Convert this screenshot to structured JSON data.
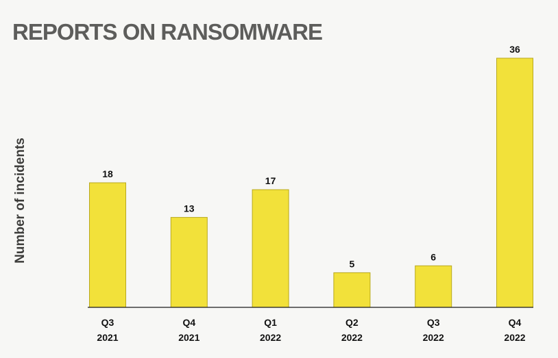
{
  "chart_data": {
    "type": "bar",
    "title": "REPORTS ON RANSOMWARE",
    "ylabel": "Number of incidents",
    "xlabel": "",
    "categories": [
      {
        "quarter": "Q3",
        "year": "2021"
      },
      {
        "quarter": "Q4",
        "year": "2021"
      },
      {
        "quarter": "Q1",
        "year": "2022"
      },
      {
        "quarter": "Q2",
        "year": "2022"
      },
      {
        "quarter": "Q3",
        "year": "2022"
      },
      {
        "quarter": "Q4",
        "year": "2022"
      }
    ],
    "values": [
      18,
      13,
      17,
      5,
      6,
      36
    ],
    "ylim": [
      0,
      36
    ],
    "bar_color": "#f2e13a",
    "bar_edge_color": "#b8a81e",
    "axis_color": "#1a1a1a",
    "grid": false,
    "legend": "none"
  }
}
